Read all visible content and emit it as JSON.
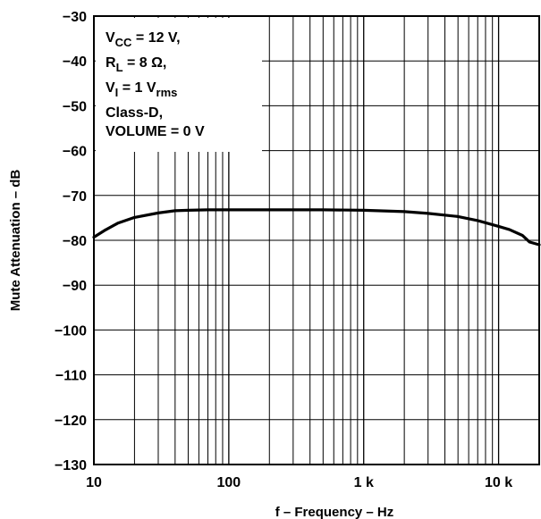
{
  "chart_data": {
    "type": "line",
    "xlabel": "f – Frequency – Hz",
    "ylabel": "Mute Attenuation – dB",
    "xscale": "log",
    "xlim": [
      10,
      20000
    ],
    "ylim": [
      -130,
      -30
    ],
    "grid": true,
    "x_ticks": [
      {
        "value": 10,
        "label": "10"
      },
      {
        "value": 100,
        "label": "100"
      },
      {
        "value": 1000,
        "label": "1 k"
      },
      {
        "value": 10000,
        "label": "10 k"
      }
    ],
    "y_ticks": [
      {
        "value": -30,
        "label": "−30"
      },
      {
        "value": -40,
        "label": "−40"
      },
      {
        "value": -50,
        "label": "−50"
      },
      {
        "value": -60,
        "label": "−60"
      },
      {
        "value": -70,
        "label": "−70"
      },
      {
        "value": -80,
        "label": "−80"
      },
      {
        "value": -90,
        "label": "−90"
      },
      {
        "value": -100,
        "label": "−100"
      },
      {
        "value": -110,
        "label": "−110"
      },
      {
        "value": -120,
        "label": "−120"
      },
      {
        "value": -130,
        "label": "−130"
      }
    ],
    "conditions": [
      {
        "main": "V",
        "sub": "CC",
        "rest": " = 12 V,"
      },
      {
        "main": "R",
        "sub": "L",
        "rest": " = 8 Ω,"
      },
      {
        "main": "V",
        "sub": "I",
        "rest": " = 1 V",
        "sub2": "rms"
      },
      {
        "main": "Class-D,",
        "sub": "",
        "rest": ""
      },
      {
        "main": "VOLUME = 0 V",
        "sub": "",
        "rest": ""
      }
    ],
    "series": [
      {
        "x": [
          10,
          12,
          15,
          20,
          30,
          40,
          50,
          70,
          100,
          200,
          500,
          1000,
          2000,
          3000,
          5000,
          7000,
          10000,
          12000,
          15000,
          17000,
          20000
        ],
        "y": [
          -79.3,
          -77.8,
          -76.2,
          -74.9,
          -73.9,
          -73.4,
          -73.3,
          -73.2,
          -73.2,
          -73.2,
          -73.2,
          -73.3,
          -73.6,
          -74.0,
          -74.7,
          -75.6,
          -76.9,
          -77.6,
          -78.9,
          -80.4,
          -81.0
        ]
      }
    ]
  }
}
